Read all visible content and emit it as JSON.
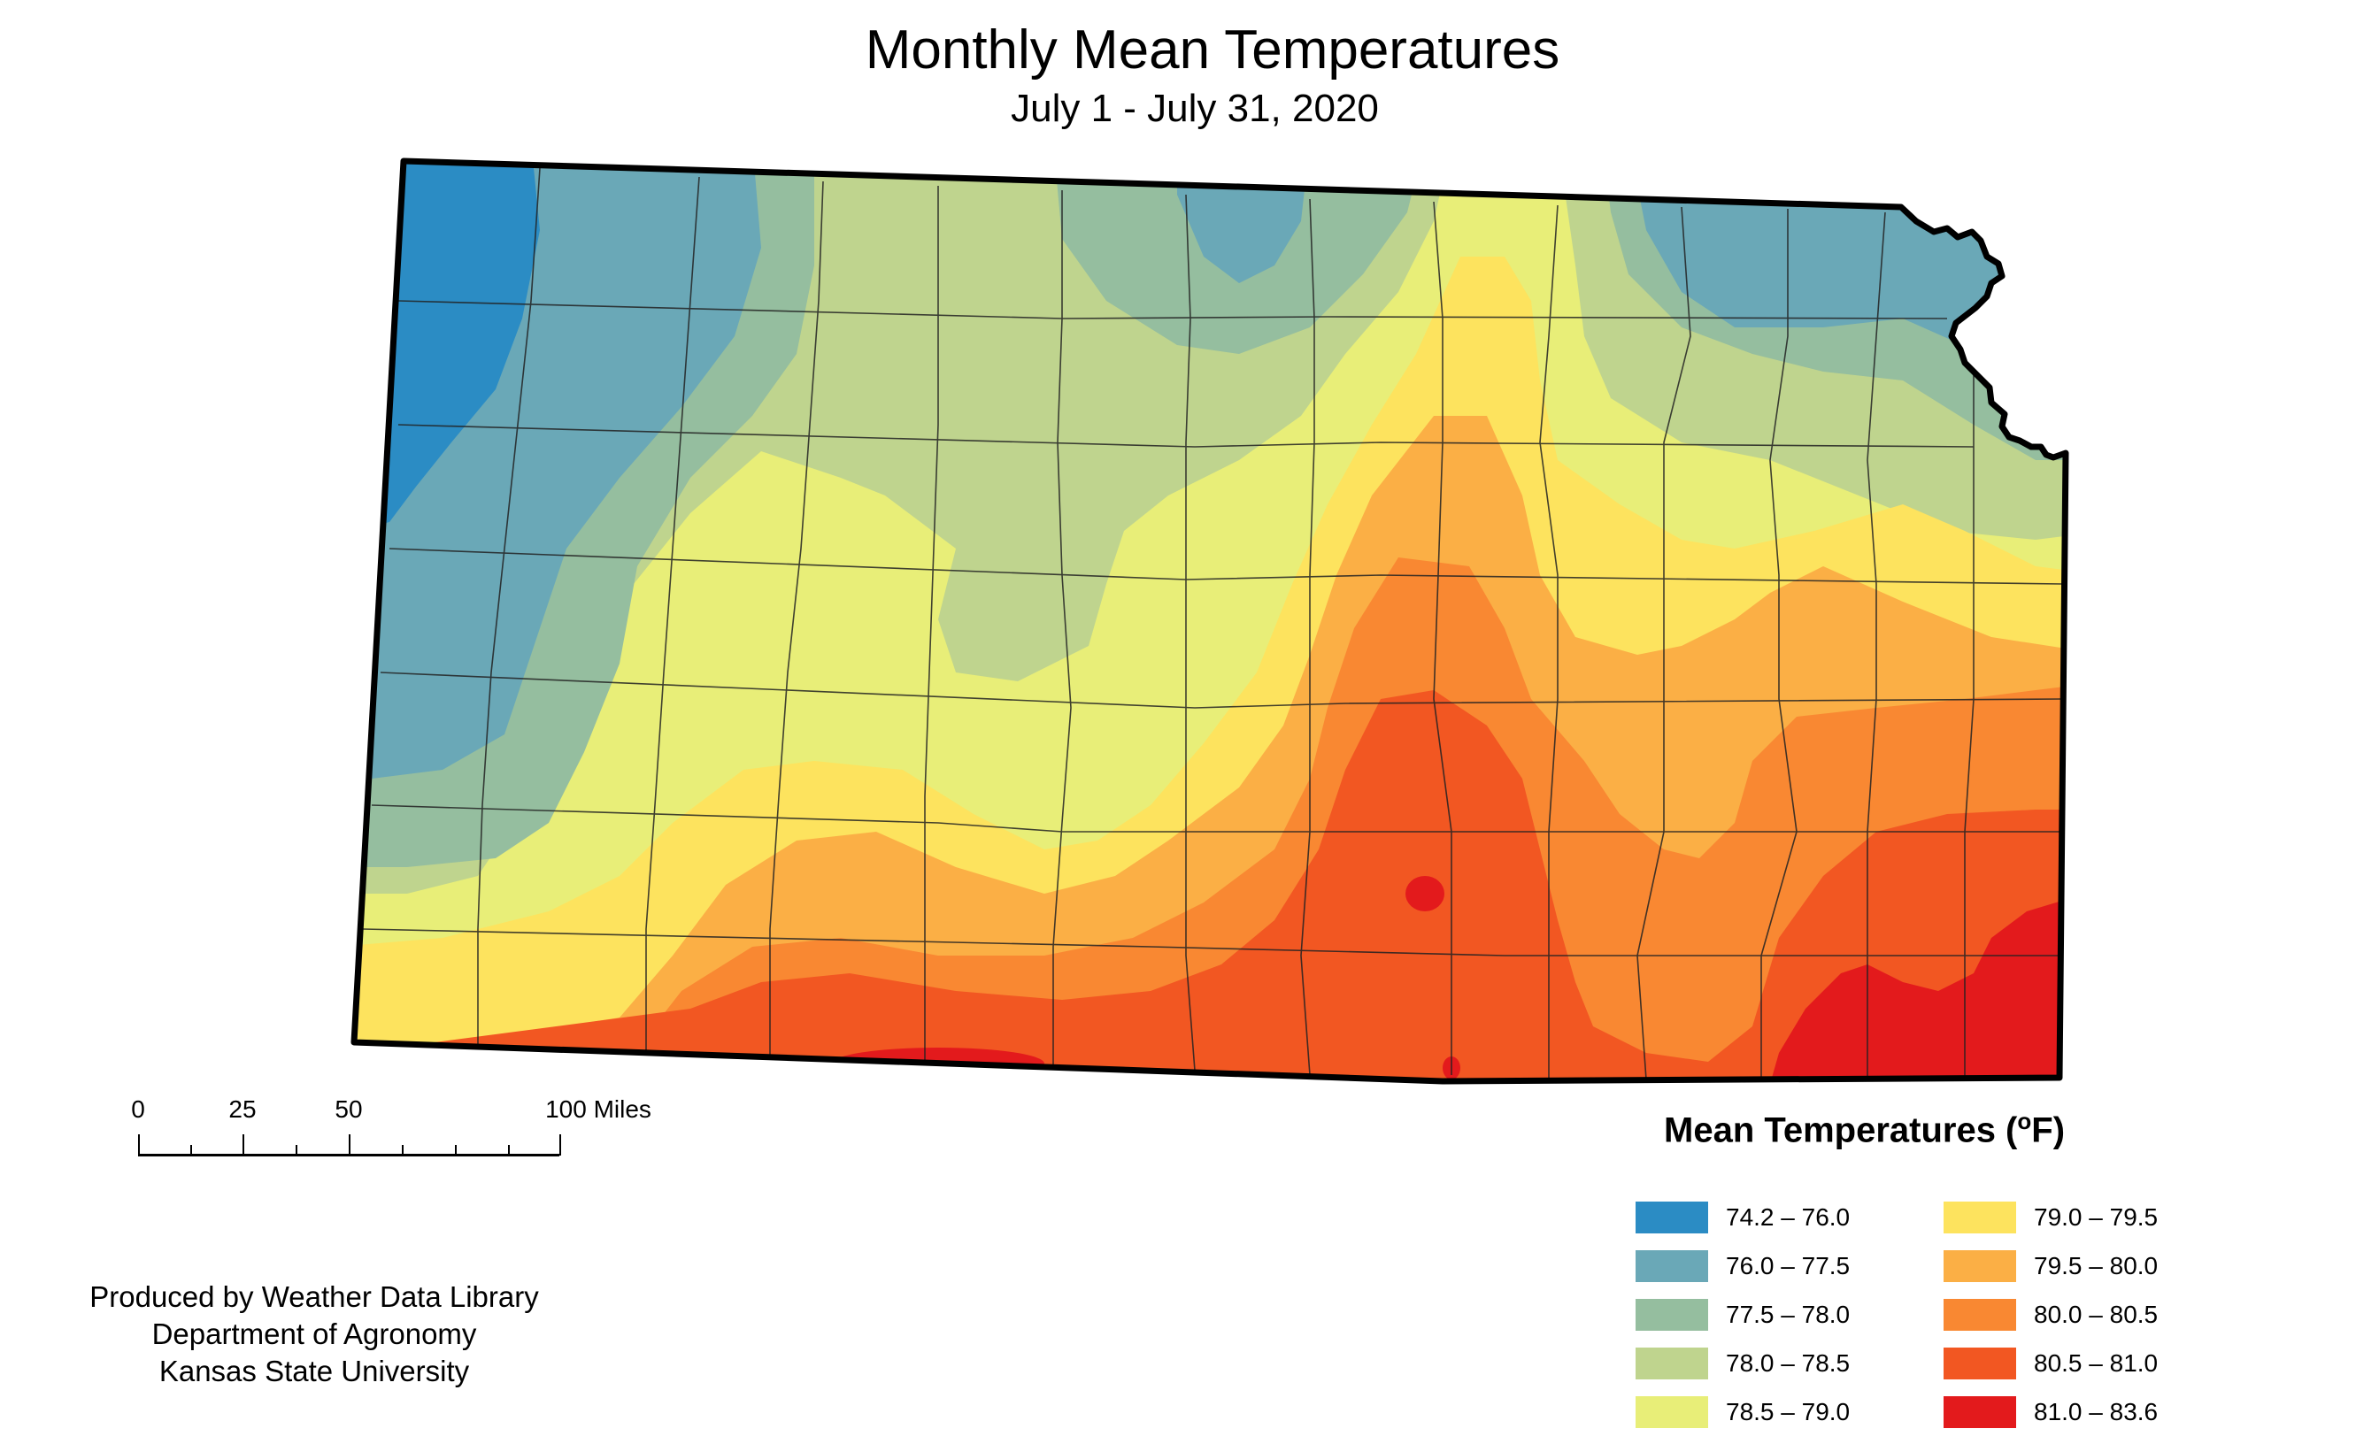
{
  "header": {
    "title": "Monthly Mean Temperatures",
    "subtitle": "July 1 - July 31, 2020"
  },
  "scale_bar": {
    "labels": [
      "0",
      "25",
      "50",
      "100 Miles"
    ],
    "unit": "Miles"
  },
  "credits": {
    "line1": "Produced by Weather Data Library",
    "line2": "Department of Agronomy",
    "line3": "Kansas State University"
  },
  "legend": {
    "title": "Mean Temperatures (",
    "unit_sup": "o",
    "unit_end": "F)",
    "items": [
      {
        "label": "74.2 – 76.0",
        "color": "#2b8cc4"
      },
      {
        "label": "76.0 – 77.5",
        "color": "#6aa8b7"
      },
      {
        "label": "77.5 – 78.0",
        "color": "#95be9f"
      },
      {
        "label": "78.0 – 78.5",
        "color": "#bfd48e"
      },
      {
        "label": "78.5 – 79.0",
        "color": "#e8ee78"
      },
      {
        "label": "79.0 – 79.5",
        "color": "#fde35e"
      },
      {
        "label": "79.5 – 80.0",
        "color": "#fbaf45"
      },
      {
        "label": "80.0 – 80.5",
        "color": "#f98832"
      },
      {
        "label": "80.5 – 81.0",
        "color": "#f25722"
      },
      {
        "label": "81.0 – 83.6",
        "color": "#e31a1c"
      }
    ]
  }
}
